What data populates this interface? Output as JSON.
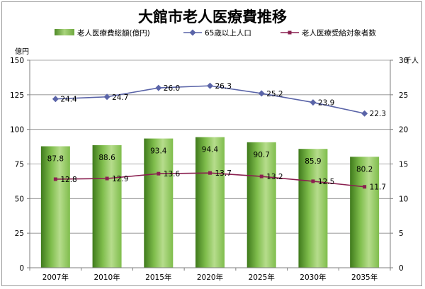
{
  "chart_data": {
    "type": "bar",
    "title": "大館市老人医療費推移",
    "categories": [
      "2007年",
      "2010年",
      "2015年",
      "2020年",
      "2025年",
      "2030年",
      "2035年"
    ],
    "y_left": {
      "unit": "億円",
      "range": [
        0,
        150
      ],
      "ticks": [
        0,
        25,
        50,
        75,
        100,
        125,
        150
      ]
    },
    "y_right": {
      "unit": "千人",
      "range": [
        0,
        30
      ],
      "ticks": [
        0,
        5,
        10,
        15,
        20,
        25,
        30
      ]
    },
    "series": [
      {
        "name": "老人医療費総額(億円)",
        "type": "bar",
        "axis": "left",
        "color": "#7db84a",
        "values": [
          87.8,
          88.6,
          93.4,
          94.4,
          90.7,
          85.9,
          80.2
        ]
      },
      {
        "name": "65歳以上人口",
        "type": "line",
        "axis": "right",
        "marker": "diamond",
        "color": "#5a64a8",
        "values": [
          24.4,
          24.7,
          26.0,
          26.3,
          25.2,
          23.9,
          22.3
        ]
      },
      {
        "name": "老人医療受給対象者数",
        "type": "line",
        "axis": "right",
        "marker": "square",
        "color": "#8a2050",
        "values": [
          12.8,
          12.9,
          13.6,
          13.7,
          13.2,
          12.5,
          11.7
        ]
      }
    ],
    "grid": true,
    "legend": "top"
  }
}
